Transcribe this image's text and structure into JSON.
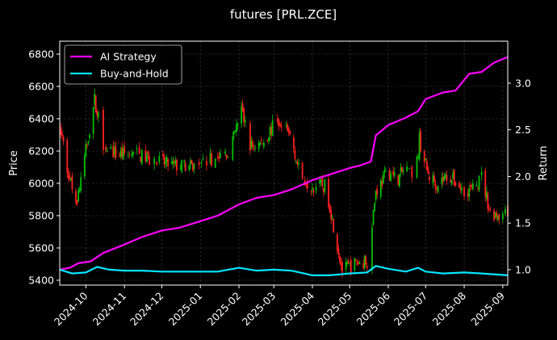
{
  "chart_data": {
    "type": "line",
    "title": "futures [PRL.ZCE]",
    "ylabel_left": "Price",
    "ylabel_right": "Return",
    "grid": true,
    "legend_position": "top-left",
    "xlim": [
      "2024-09-10",
      "2025-09-05"
    ],
    "ylim_left": [
      5370,
      6880
    ],
    "ylim_right": [
      0.835,
      3.45
    ],
    "x_ticks": [
      "2024-10",
      "2024-11",
      "2024-12",
      "2025-01",
      "2025-02",
      "2025-03",
      "2025-04",
      "2025-05",
      "2025-06",
      "2025-07",
      "2025-08",
      "2025-09"
    ],
    "y_ticks_left": [
      5400,
      5600,
      5800,
      6000,
      6200,
      6400,
      6600,
      6800
    ],
    "y_ticks_right": [
      "1.0",
      "1.5",
      "2.0",
      "2.5",
      "3.0"
    ],
    "y_ticks_right_values": [
      1.0,
      1.5,
      2.0,
      2.5,
      3.0
    ],
    "colors": {
      "up": "#00c000",
      "down": "#ff2020",
      "ai_strategy": "#ff00ff",
      "buy_hold": "#00e5ff"
    },
    "series": [
      {
        "name": "AI Strategy",
        "x": [
          "2024-09-10",
          "2024-09-18",
          "2024-09-25",
          "2024-10-05",
          "2024-10-15",
          "2024-11-01",
          "2024-11-15",
          "2024-12-01",
          "2024-12-15",
          "2025-01-01",
          "2025-01-15",
          "2025-02-01",
          "2025-02-15",
          "2025-03-01",
          "2025-03-15",
          "2025-04-01",
          "2025-04-15",
          "2025-05-01",
          "2025-05-10",
          "2025-05-18",
          "2025-05-22",
          "2025-06-01",
          "2025-06-15",
          "2025-06-25",
          "2025-07-01",
          "2025-07-15",
          "2025-07-25",
          "2025-08-05",
          "2025-08-15",
          "2025-08-25",
          "2025-09-05"
        ],
        "values": [
          1.0,
          1.02,
          1.07,
          1.09,
          1.18,
          1.27,
          1.35,
          1.42,
          1.45,
          1.52,
          1.58,
          1.7,
          1.77,
          1.8,
          1.86,
          1.96,
          2.02,
          2.09,
          2.12,
          2.16,
          2.44,
          2.55,
          2.63,
          2.7,
          2.83,
          2.9,
          2.92,
          3.1,
          3.12,
          3.22,
          3.28
        ]
      },
      {
        "name": "Buy-and-Hold",
        "x": [
          "2024-09-10",
          "2024-09-20",
          "2024-10-01",
          "2024-10-10",
          "2024-10-20",
          "2024-11-01",
          "2024-11-15",
          "2024-12-01",
          "2024-12-15",
          "2025-01-01",
          "2025-01-15",
          "2025-02-01",
          "2025-02-15",
          "2025-03-01",
          "2025-03-15",
          "2025-04-01",
          "2025-04-15",
          "2025-05-01",
          "2025-05-15",
          "2025-05-22",
          "2025-06-01",
          "2025-06-15",
          "2025-06-25",
          "2025-07-01",
          "2025-07-15",
          "2025-08-01",
          "2025-08-15",
          "2025-09-05"
        ],
        "values": [
          1.0,
          0.96,
          0.97,
          1.03,
          1.0,
          0.99,
          0.99,
          0.98,
          0.98,
          0.98,
          0.98,
          1.02,
          0.99,
          1.0,
          0.99,
          0.94,
          0.94,
          0.96,
          0.97,
          1.04,
          1.01,
          0.98,
          1.02,
          0.98,
          0.96,
          0.97,
          0.96,
          0.94
        ]
      }
    ],
    "candles_daily_close_anchors": {
      "x": [
        "2024-09-10",
        "2024-09-18",
        "2024-09-24",
        "2024-09-28",
        "2024-10-08",
        "2024-10-15",
        "2024-10-25",
        "2024-11-10",
        "2024-11-25",
        "2024-12-10",
        "2024-12-25",
        "2025-01-05",
        "2025-01-15",
        "2025-01-25",
        "2025-02-03",
        "2025-02-10",
        "2025-02-20",
        "2025-03-01",
        "2025-03-08",
        "2025-03-15",
        "2025-03-22",
        "2025-04-01",
        "2025-04-12",
        "2025-04-25",
        "2025-05-05",
        "2025-05-15",
        "2025-05-22",
        "2025-06-01",
        "2025-06-08",
        "2025-06-15",
        "2025-06-22",
        "2025-06-26",
        "2025-07-03",
        "2025-07-10",
        "2025-07-20",
        "2025-07-30",
        "2025-08-08",
        "2025-08-15",
        "2025-08-22",
        "2025-09-05"
      ],
      "values": [
        6360,
        6020,
        5900,
        6070,
        6520,
        6250,
        6180,
        6180,
        6140,
        6110,
        6100,
        6140,
        6160,
        6200,
        6460,
        6230,
        6250,
        6360,
        6340,
        6290,
        6050,
        5990,
        5980,
        5460,
        5500,
        5520,
        5950,
        6080,
        6020,
        6100,
        5990,
        6270,
        6050,
        6000,
        6050,
        5960,
        5960,
        6040,
        5820,
        5800
      ]
    }
  }
}
